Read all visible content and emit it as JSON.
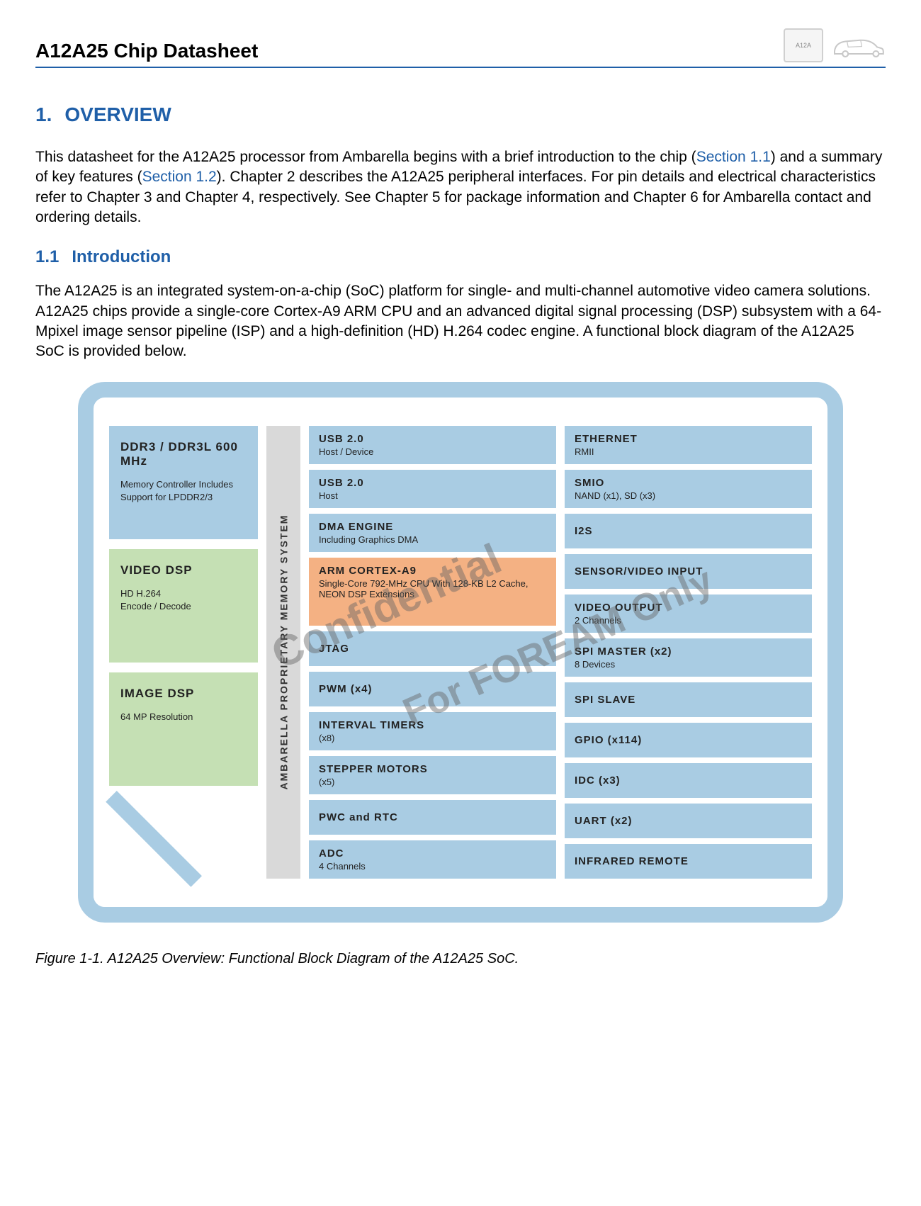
{
  "header": {
    "title": "A12A25 Chip Datasheet",
    "chip_label": "A12A"
  },
  "section1": {
    "number": "1.",
    "title": "OVERVIEW",
    "intro_before_link1": "This  datasheet for the A12A25 processor from Ambarella begins with a brief introduction to the chip (",
    "link1": "Section 1.1",
    "intro_mid": ") and a summary of key features (",
    "link2": "Section 1.2",
    "intro_after": ").  Chapter 2 describes the A12A25 peripheral interfaces.  For pin details and electrical characteristics refer to Chapter 3 and Chapter 4, respectively.  See Chapter 5 for package information and Chapter 6 for Ambarella contact and ordering details."
  },
  "section11": {
    "number": "1.1",
    "title": "Introduction",
    "text": "The A12A25 is an integrated system-on-a-chip (SoC) platform for single- and multi-channel automotive video camera solutions.  A12A25 chips provide a single-core Cortex-A9 ARM CPU and an advanced digital signal processing (DSP) subsystem with a 64-Mpixel image sensor pipeline (ISP) and a high-definition (HD) H.264 codec engine.  A functional block diagram of the A12A25 SoC is provided below."
  },
  "diagram": {
    "colors": {
      "frame": "#a9cce3",
      "blue_block": "#a9cce3",
      "green_block": "#c5e0b4",
      "orange_block": "#f4b183",
      "gray_block": "#d9d9d9",
      "background": "#ffffff"
    },
    "memory_system_label": "AMBARELLA PROPRIETARY MEMORY SYSTEM",
    "left_blocks": [
      {
        "title": "DDR3 / DDR3L 600 MHz",
        "sub": "Memory Controller Includes Support for LPDDR2/3",
        "color": "blue"
      },
      {
        "title": "VIDEO DSP",
        "sub": "HD H.264\nEncode / Decode",
        "color": "green"
      },
      {
        "title": "IMAGE DSP",
        "sub": "64 MP Resolution",
        "color": "green"
      }
    ],
    "mid_blocks": [
      {
        "title": "USB 2.0",
        "sub": "Host / Device",
        "color": "blue"
      },
      {
        "title": "USB 2.0",
        "sub": "Host",
        "color": "blue"
      },
      {
        "title": "DMA ENGINE",
        "sub": "Including Graphics DMA",
        "color": "blue"
      },
      {
        "title": "ARM CORTEX-A9",
        "sub": "Single-Core 792-MHz CPU With 128-KB L2 Cache, NEON DSP Extensions",
        "color": "orange",
        "tall": true
      },
      {
        "title": "JTAG",
        "sub": "",
        "color": "blue"
      },
      {
        "title": "PWM (x4)",
        "sub": "",
        "color": "blue"
      },
      {
        "title": "INTERVAL TIMERS",
        "sub": "(x8)",
        "color": "blue"
      },
      {
        "title": "STEPPER MOTORS",
        "sub": "(x5)",
        "color": "blue"
      },
      {
        "title": "PWC and RTC",
        "sub": "",
        "color": "blue"
      },
      {
        "title": "ADC",
        "sub": "4 Channels",
        "color": "blue"
      }
    ],
    "right_blocks": [
      {
        "title": "ETHERNET",
        "sub": "RMII",
        "color": "blue"
      },
      {
        "title": "SMIO",
        "sub": "NAND (x1), SD (x3)",
        "color": "blue"
      },
      {
        "title": "I2S",
        "sub": "",
        "color": "blue"
      },
      {
        "title": "SENSOR/VIDEO INPUT",
        "sub": "",
        "color": "blue"
      },
      {
        "title": "VIDEO OUTPUT",
        "sub": "2 Channels",
        "color": "blue"
      },
      {
        "title": "SPI MASTER  (x2)",
        "sub": "8 Devices",
        "color": "blue"
      },
      {
        "title": "SPI SLAVE",
        "sub": "",
        "color": "blue"
      },
      {
        "title": "GPIO (x114)",
        "sub": "",
        "color": "blue"
      },
      {
        "title": "IDC (x3)",
        "sub": "",
        "color": "blue"
      },
      {
        "title": "UART (x2)",
        "sub": "",
        "color": "blue"
      },
      {
        "title": "INFRARED REMOTE",
        "sub": "",
        "color": "blue"
      }
    ],
    "watermark1": "Confidential",
    "watermark2": "For FOREAM Only"
  },
  "figure_caption": "Figure 1-1.   A12A25 Overview:  Functional Block Diagram of the A12A25 SoC."
}
